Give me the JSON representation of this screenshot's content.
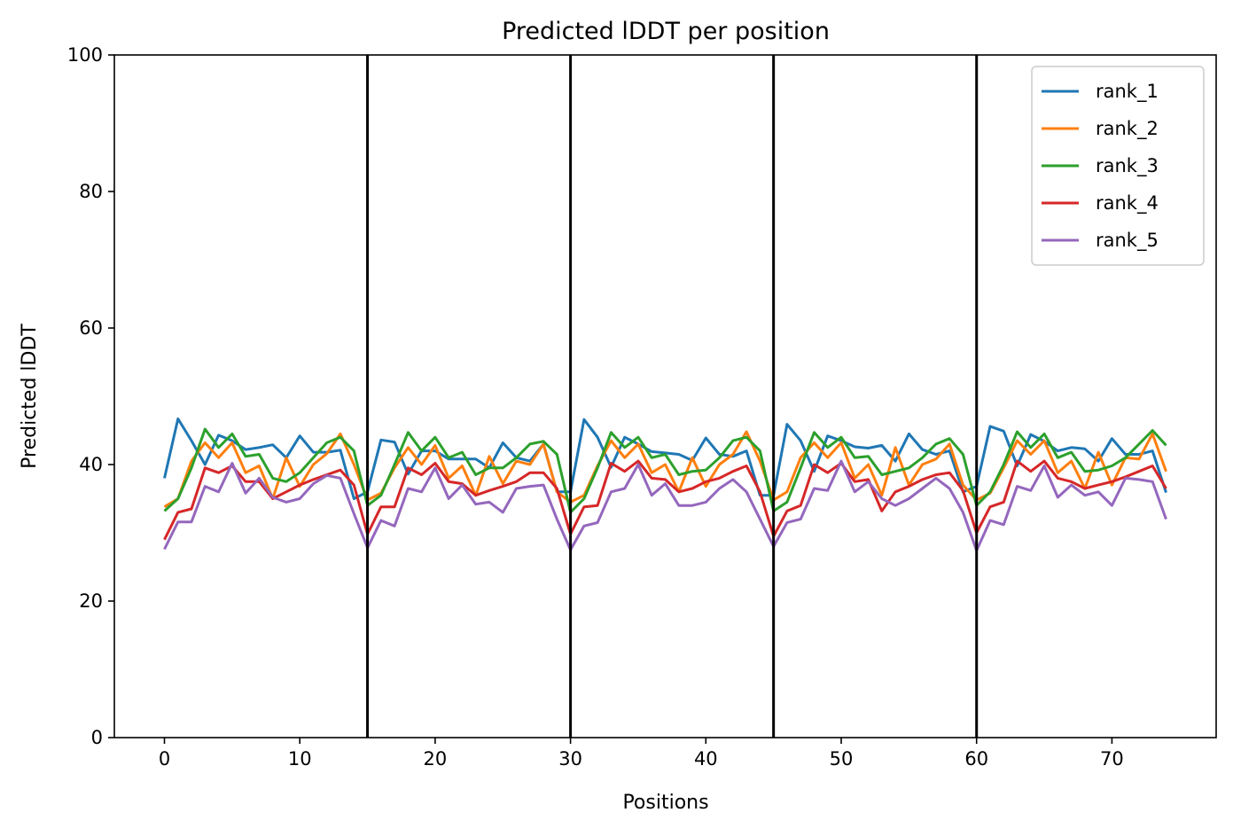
{
  "chart_data": {
    "type": "line",
    "title": "Predicted lDDT per position",
    "xlabel": "Positions",
    "ylabel": "Predicted lDDT",
    "xlim": [
      -3.7,
      77.7
    ],
    "ylim": [
      0,
      100
    ],
    "xticks": [
      0,
      10,
      20,
      30,
      40,
      50,
      60,
      70
    ],
    "yticks": [
      0,
      20,
      40,
      60,
      80,
      100
    ],
    "grid": false,
    "legend_position": "top-right",
    "vlines": [
      15,
      30,
      45,
      60
    ],
    "vline_color": "#000000",
    "x": [
      0,
      1,
      2,
      3,
      4,
      5,
      6,
      7,
      8,
      9,
      10,
      11,
      12,
      13,
      14,
      15,
      16,
      17,
      18,
      19,
      20,
      21,
      22,
      23,
      24,
      25,
      26,
      27,
      28,
      29,
      30,
      31,
      32,
      33,
      34,
      35,
      36,
      37,
      38,
      39,
      40,
      41,
      42,
      43,
      44,
      45,
      46,
      47,
      48,
      49,
      50,
      51,
      52,
      53,
      54,
      55,
      56,
      57,
      58,
      59,
      60,
      61,
      62,
      63,
      64,
      65,
      66,
      67,
      68,
      69,
      70,
      71,
      72,
      73,
      74
    ],
    "series": [
      {
        "name": "rank_1",
        "color": "#1f77b4",
        "values": [
          38.0,
          46.7,
          43.5,
          40.0,
          44.3,
          43.5,
          42.2,
          42.5,
          42.9,
          41.0,
          44.2,
          41.8,
          41.8,
          42.1,
          35.0,
          36.0,
          43.6,
          43.3,
          38.6,
          42.0,
          42.0,
          40.8,
          40.8,
          40.8,
          39.5,
          43.2,
          41.0,
          40.5,
          43.0,
          36.0,
          36.0,
          46.6,
          44.0,
          39.6,
          44.0,
          43.0,
          41.9,
          41.7,
          41.5,
          40.6,
          43.9,
          41.5,
          41.2,
          42.0,
          35.5,
          35.5,
          45.9,
          43.5,
          39.0,
          44.2,
          43.5,
          42.6,
          42.4,
          42.8,
          40.5,
          44.5,
          42.2,
          41.5,
          42.0,
          36.0,
          36.8,
          45.6,
          44.9,
          39.8,
          44.4,
          43.4,
          42.0,
          42.5,
          42.3,
          40.5,
          43.8,
          41.5,
          41.5,
          42.0,
          35.9
        ]
      },
      {
        "name": "rank_2",
        "color": "#ff7f0e",
        "values": [
          33.8,
          35.0,
          40.5,
          43.2,
          41.0,
          43.2,
          38.8,
          39.8,
          35.0,
          41.0,
          36.8,
          40.0,
          41.6,
          44.5,
          40.0,
          34.8,
          35.8,
          39.5,
          42.5,
          40.0,
          42.8,
          38.0,
          39.8,
          35.5,
          41.2,
          37.2,
          40.5,
          40.0,
          43.0,
          36.0,
          34.5,
          35.5,
          39.8,
          43.5,
          41.0,
          43.0,
          38.8,
          40.0,
          36.0,
          41.0,
          36.8,
          40.0,
          41.5,
          44.8,
          40.5,
          34.8,
          36.0,
          41.0,
          43.2,
          41.0,
          43.2,
          38.0,
          40.0,
          35.5,
          42.5,
          37.0,
          40.0,
          40.8,
          43.0,
          37.0,
          34.8,
          35.8,
          39.5,
          43.5,
          41.5,
          43.5,
          38.8,
          40.5,
          36.5,
          41.8,
          37.0,
          41.0,
          40.8,
          44.5,
          39.0
        ]
      },
      {
        "name": "rank_3",
        "color": "#2ca02c",
        "values": [
          33.2,
          35.0,
          39.5,
          45.2,
          42.5,
          44.5,
          41.2,
          41.5,
          38.0,
          37.5,
          38.8,
          41.0,
          43.2,
          44.0,
          42.0,
          34.0,
          35.5,
          40.0,
          44.7,
          42.0,
          44.0,
          41.0,
          41.8,
          38.5,
          39.5,
          39.5,
          41.0,
          43.0,
          43.4,
          41.5,
          33.0,
          35.0,
          39.5,
          44.7,
          42.5,
          44.0,
          41.0,
          41.5,
          38.5,
          39.0,
          39.2,
          41.0,
          43.5,
          44.0,
          42.0,
          33.2,
          34.5,
          39.5,
          44.7,
          42.5,
          44.0,
          41.0,
          41.2,
          38.5,
          39.0,
          39.5,
          41.0,
          43.0,
          43.8,
          41.5,
          34.0,
          36.0,
          40.0,
          44.8,
          42.5,
          44.5,
          41.0,
          41.8,
          39.0,
          39.2,
          39.8,
          41.0,
          43.0,
          45.0,
          42.8
        ]
      },
      {
        "name": "rank_4",
        "color": "#d62728",
        "values": [
          29.0,
          33.0,
          33.5,
          39.5,
          38.8,
          39.8,
          37.5,
          37.5,
          35.0,
          36.0,
          37.0,
          37.8,
          38.5,
          39.2,
          37.0,
          29.8,
          33.8,
          33.8,
          39.5,
          38.5,
          40.2,
          37.5,
          37.2,
          35.5,
          36.2,
          36.8,
          37.5,
          38.8,
          38.8,
          36.5,
          29.8,
          33.8,
          34.0,
          40.2,
          39.0,
          40.5,
          38.0,
          37.8,
          36.0,
          36.5,
          37.5,
          38.0,
          39.0,
          39.8,
          36.0,
          29.5,
          33.2,
          34.0,
          40.0,
          38.8,
          40.2,
          37.5,
          37.8,
          33.2,
          36.0,
          36.8,
          37.8,
          38.5,
          38.8,
          36.2,
          30.0,
          33.8,
          34.5,
          40.5,
          39.0,
          40.5,
          38.0,
          37.5,
          36.5,
          37.0,
          37.5,
          38.2,
          39.0,
          39.8,
          36.5
        ]
      },
      {
        "name": "rank_5",
        "color": "#9467bd",
        "values": [
          27.6,
          31.6,
          31.6,
          36.8,
          36.0,
          40.2,
          35.8,
          38.0,
          35.2,
          34.5,
          35.0,
          37.2,
          38.4,
          38.0,
          32.8,
          27.8,
          31.8,
          31.0,
          36.5,
          36.0,
          39.5,
          35.0,
          37.0,
          34.2,
          34.5,
          33.0,
          36.5,
          36.8,
          37.0,
          32.0,
          27.5,
          31.0,
          31.5,
          36.0,
          36.5,
          40.0,
          35.5,
          37.2,
          34.0,
          34.0,
          34.5,
          36.5,
          37.8,
          36.0,
          32.0,
          28.0,
          31.5,
          32.0,
          36.5,
          36.2,
          40.5,
          36.0,
          37.5,
          35.0,
          34.0,
          35.0,
          36.5,
          38.0,
          36.5,
          33.0,
          27.4,
          31.8,
          31.2,
          36.8,
          36.2,
          39.8,
          35.2,
          37.0,
          35.5,
          36.0,
          34.0,
          38.0,
          37.8,
          37.5,
          32.0
        ]
      }
    ]
  }
}
